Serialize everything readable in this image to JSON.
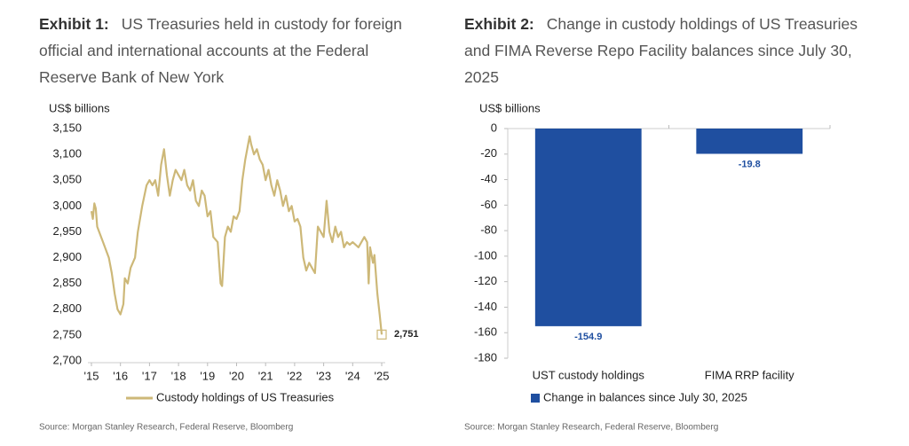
{
  "chart_data": [
    {
      "type": "line",
      "exhibit": "Exhibit 1:",
      "title": "US Treasuries held in custody for foreign official and international accounts at the Federal Reserve Bank of New York",
      "y_label": "US$ billions",
      "xlim": [
        2015,
        2025
      ],
      "xticks": [
        {
          "value": 2015,
          "label": "'15"
        },
        {
          "value": 2016,
          "label": "'16"
        },
        {
          "value": 2017,
          "label": "'17"
        },
        {
          "value": 2018,
          "label": "'18"
        },
        {
          "value": 2019,
          "label": "'19"
        },
        {
          "value": 2020,
          "label": "'20"
        },
        {
          "value": 2021,
          "label": "'21"
        },
        {
          "value": 2022,
          "label": "'22"
        },
        {
          "value": 2023,
          "label": "'23"
        },
        {
          "value": 2024,
          "label": "'24"
        },
        {
          "value": 2025,
          "label": "'25"
        }
      ],
      "ylim": [
        2700,
        3150
      ],
      "yticks": [
        {
          "value": 2700,
          "label": "2,700"
        },
        {
          "value": 2750,
          "label": "2,750"
        },
        {
          "value": 2800,
          "label": "2,800"
        },
        {
          "value": 2850,
          "label": "2,850"
        },
        {
          "value": 2900,
          "label": "2,900"
        },
        {
          "value": 2950,
          "label": "2,950"
        },
        {
          "value": 3000,
          "label": "3,000"
        },
        {
          "value": 3050,
          "label": "3,050"
        },
        {
          "value": 3100,
          "label": "3,100"
        },
        {
          "value": 3150,
          "label": "3,150"
        }
      ],
      "grid": false,
      "x": [
        2015.0,
        2015.05,
        2015.1,
        2015.15,
        2015.2,
        2015.3,
        2015.4,
        2015.5,
        2015.6,
        2015.7,
        2015.8,
        2015.9,
        2016.0,
        2016.1,
        2016.15,
        2016.25,
        2016.35,
        2016.5,
        2016.6,
        2016.75,
        2016.9,
        2017.0,
        2017.1,
        2017.2,
        2017.3,
        2017.4,
        2017.5,
        2017.6,
        2017.7,
        2017.8,
        2017.9,
        2018.0,
        2018.1,
        2018.2,
        2018.3,
        2018.4,
        2018.5,
        2018.6,
        2018.7,
        2018.8,
        2018.9,
        2019.0,
        2019.1,
        2019.2,
        2019.35,
        2019.45,
        2019.5,
        2019.6,
        2019.7,
        2019.8,
        2019.9,
        2020.0,
        2020.1,
        2020.2,
        2020.3,
        2020.45,
        2020.5,
        2020.6,
        2020.7,
        2020.8,
        2020.9,
        2021.0,
        2021.1,
        2021.2,
        2021.3,
        2021.4,
        2021.5,
        2021.6,
        2021.7,
        2021.8,
        2021.9,
        2022.0,
        2022.1,
        2022.2,
        2022.3,
        2022.4,
        2022.5,
        2022.6,
        2022.7,
        2022.8,
        2022.9,
        2023.0,
        2023.1,
        2023.2,
        2023.3,
        2023.4,
        2023.5,
        2023.6,
        2023.7,
        2023.8,
        2023.9,
        2024.0,
        2024.2,
        2024.4,
        2024.5,
        2024.55,
        2024.6,
        2024.7,
        2024.75,
        2024.85,
        2024.93,
        2025.0
      ],
      "series": [
        {
          "name": "Custody holdings of US Treasuries",
          "color": "#cdb878",
          "values": [
            2990,
            2975,
            3005,
            2995,
            2960,
            2945,
            2930,
            2915,
            2900,
            2870,
            2830,
            2800,
            2790,
            2810,
            2860,
            2850,
            2880,
            2900,
            2950,
            3000,
            3040,
            3050,
            3040,
            3050,
            3020,
            3080,
            3110,
            3060,
            3020,
            3050,
            3070,
            3060,
            3050,
            3070,
            3040,
            3030,
            3050,
            3010,
            3000,
            3030,
            3020,
            2980,
            2990,
            2940,
            2930,
            2850,
            2845,
            2940,
            2960,
            2950,
            2980,
            2975,
            2990,
            3050,
            3090,
            3135,
            3120,
            3100,
            3110,
            3090,
            3080,
            3050,
            3070,
            3040,
            3020,
            3050,
            3030,
            3000,
            3020,
            2990,
            3000,
            2970,
            2975,
            2960,
            2900,
            2875,
            2890,
            2880,
            2870,
            2960,
            2950,
            2940,
            3010,
            2950,
            2930,
            2960,
            2940,
            2950,
            2920,
            2930,
            2925,
            2930,
            2920,
            2940,
            2930,
            2850,
            2920,
            2890,
            2905,
            2830,
            2790,
            2751
          ]
        }
      ],
      "annotation": "2,751",
      "source": "Source: Morgan Stanley Research, Federal Reserve, Bloomberg"
    },
    {
      "type": "bar",
      "exhibit": "Exhibit 2:",
      "title": "Change in custody holdings of US Treasuries and FIMA Reverse Repo Facility balances since July 30, 2025",
      "y_label": "US$ billions",
      "categories": [
        "UST custody holdings",
        "FIMA RRP facility"
      ],
      "ylim": [
        -180,
        0
      ],
      "yticks": [
        0,
        -20,
        -40,
        -60,
        -80,
        -100,
        -120,
        -140,
        -160,
        -180
      ],
      "grid": false,
      "series": [
        {
          "name": "Change in balances since July 30, 2025",
          "color": "#1f4fa0",
          "values": [
            -154.9,
            -19.8
          ]
        }
      ],
      "source": "Source: Morgan Stanley Research, Federal Reserve, Bloomberg"
    }
  ]
}
